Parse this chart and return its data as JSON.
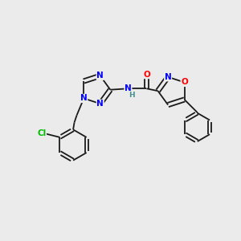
{
  "background_color": "#ebebeb",
  "bond_color": "#1a1a1a",
  "atom_colors": {
    "N": "#0000ff",
    "O": "#ff0000",
    "Cl": "#00bb00",
    "C": "#1a1a1a",
    "H": "#4a9090"
  },
  "figsize": [
    3.0,
    3.0
  ],
  "dpi": 100,
  "lw": 1.3,
  "fs": 7.5
}
